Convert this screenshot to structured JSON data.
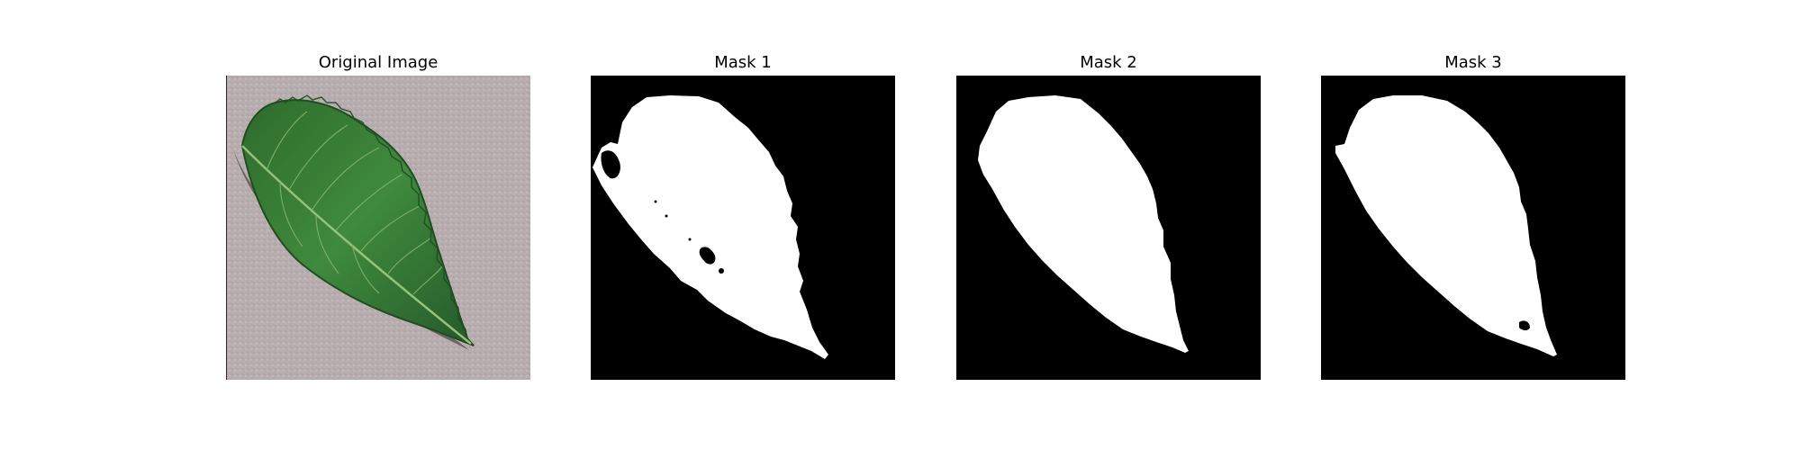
{
  "figure": {
    "panels": [
      {
        "title": "Original Image",
        "kind": "photo"
      },
      {
        "title": "Mask 1",
        "kind": "mask"
      },
      {
        "title": "Mask 2",
        "kind": "mask"
      },
      {
        "title": "Mask 3",
        "kind": "mask"
      }
    ],
    "colors": {
      "mask_background": "#000000",
      "mask_foreground": "#ffffff",
      "leaf_green": "#3f8a3c",
      "leaf_dark": "#1f4e21",
      "leaf_vein": "#95c27a",
      "photo_background": "#b9aeaf",
      "shadow": "#5e5657"
    }
  }
}
